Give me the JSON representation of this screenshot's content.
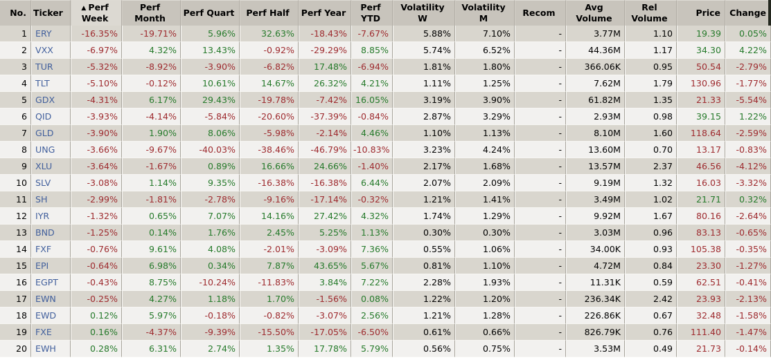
{
  "header": {
    "sort_indicator": "▲",
    "columns": [
      {
        "label": "No.",
        "field": "no",
        "align": "right",
        "head_align": "right",
        "rule": "plain",
        "sorted": false
      },
      {
        "label": "Ticker",
        "field": "ticker",
        "align": "left",
        "head_align": "left",
        "rule": "ticker",
        "sorted": false
      },
      {
        "label": "Perf Week",
        "field": "perf_week",
        "align": "right",
        "head_align": "center",
        "rule": "sign",
        "sorted": true
      },
      {
        "label": "Perf Month",
        "field": "perf_month",
        "align": "right",
        "head_align": "center",
        "rule": "sign",
        "sorted": false
      },
      {
        "label": "Perf Quart",
        "field": "perf_quart",
        "align": "right",
        "head_align": "center",
        "rule": "sign",
        "sorted": false
      },
      {
        "label": "Perf Half",
        "field": "perf_half",
        "align": "right",
        "head_align": "center",
        "rule": "sign",
        "sorted": false
      },
      {
        "label": "Perf Year",
        "field": "perf_year",
        "align": "right",
        "head_align": "center",
        "rule": "sign",
        "sorted": false
      },
      {
        "label": "Perf YTD",
        "field": "perf_ytd",
        "align": "right",
        "head_align": "center",
        "rule": "sign",
        "sorted": false
      },
      {
        "label": "Volatility W",
        "field": "vol_w",
        "align": "right",
        "head_align": "center",
        "rule": "plain",
        "sorted": false
      },
      {
        "label": "Volatility M",
        "field": "vol_m",
        "align": "right",
        "head_align": "center",
        "rule": "plain",
        "sorted": false
      },
      {
        "label": "Recom",
        "field": "recom",
        "align": "right",
        "head_align": "center",
        "rule": "plain",
        "sorted": false
      },
      {
        "label": "Avg Volume",
        "field": "avg_volume",
        "align": "right",
        "head_align": "center",
        "rule": "plain",
        "sorted": false
      },
      {
        "label": "Rel Volume",
        "field": "rel_volume",
        "align": "right",
        "head_align": "center",
        "rule": "plain",
        "sorted": false
      },
      {
        "label": "Price",
        "field": "price",
        "align": "right",
        "head_align": "right",
        "rule": "price",
        "sorted": false
      },
      {
        "label": "Change",
        "field": "change",
        "align": "right",
        "head_align": "right",
        "rule": "sign",
        "sorted": false
      }
    ]
  },
  "rows": [
    {
      "no": "1",
      "ticker": "ERY",
      "perf_week": "-16.35%",
      "perf_month": "-19.71%",
      "perf_quart": "5.96%",
      "perf_half": "32.63%",
      "perf_year": "-18.43%",
      "perf_ytd": "-7.67%",
      "vol_w": "5.88%",
      "vol_m": "7.10%",
      "recom": "-",
      "avg_volume": "3.77M",
      "rel_volume": "1.10",
      "price": "19.39",
      "change": "0.05%"
    },
    {
      "no": "2",
      "ticker": "VXX",
      "perf_week": "-6.97%",
      "perf_month": "4.32%",
      "perf_quart": "13.43%",
      "perf_half": "-0.92%",
      "perf_year": "-29.29%",
      "perf_ytd": "8.85%",
      "vol_w": "5.74%",
      "vol_m": "6.52%",
      "recom": "-",
      "avg_volume": "44.36M",
      "rel_volume": "1.17",
      "price": "34.30",
      "change": "4.22%"
    },
    {
      "no": "3",
      "ticker": "TUR",
      "perf_week": "-5.32%",
      "perf_month": "-8.92%",
      "perf_quart": "-3.90%",
      "perf_half": "-6.82%",
      "perf_year": "17.48%",
      "perf_ytd": "-6.94%",
      "vol_w": "1.81%",
      "vol_m": "1.80%",
      "recom": "-",
      "avg_volume": "366.06K",
      "rel_volume": "0.95",
      "price": "50.54",
      "change": "-2.79%"
    },
    {
      "no": "4",
      "ticker": "TLT",
      "perf_week": "-5.10%",
      "perf_month": "-0.12%",
      "perf_quart": "10.61%",
      "perf_half": "14.67%",
      "perf_year": "26.32%",
      "perf_ytd": "4.21%",
      "vol_w": "1.11%",
      "vol_m": "1.25%",
      "recom": "-",
      "avg_volume": "7.62M",
      "rel_volume": "1.79",
      "price": "130.96",
      "change": "-1.77%"
    },
    {
      "no": "5",
      "ticker": "GDX",
      "perf_week": "-4.31%",
      "perf_month": "6.17%",
      "perf_quart": "29.43%",
      "perf_half": "-19.78%",
      "perf_year": "-7.42%",
      "perf_ytd": "16.05%",
      "vol_w": "3.19%",
      "vol_m": "3.90%",
      "recom": "-",
      "avg_volume": "61.82M",
      "rel_volume": "1.35",
      "price": "21.33",
      "change": "-5.54%"
    },
    {
      "no": "6",
      "ticker": "QID",
      "perf_week": "-3.93%",
      "perf_month": "-4.14%",
      "perf_quart": "-5.84%",
      "perf_half": "-20.60%",
      "perf_year": "-37.39%",
      "perf_ytd": "-0.84%",
      "vol_w": "2.87%",
      "vol_m": "3.29%",
      "recom": "-",
      "avg_volume": "2.93M",
      "rel_volume": "0.98",
      "price": "39.15",
      "change": "1.22%"
    },
    {
      "no": "7",
      "ticker": "GLD",
      "perf_week": "-3.90%",
      "perf_month": "1.90%",
      "perf_quart": "8.06%",
      "perf_half": "-5.98%",
      "perf_year": "-2.14%",
      "perf_ytd": "4.46%",
      "vol_w": "1.10%",
      "vol_m": "1.13%",
      "recom": "-",
      "avg_volume": "8.10M",
      "rel_volume": "1.60",
      "price": "118.64",
      "change": "-2.59%"
    },
    {
      "no": "8",
      "ticker": "UNG",
      "perf_week": "-3.66%",
      "perf_month": "-9.67%",
      "perf_quart": "-40.03%",
      "perf_half": "-38.46%",
      "perf_year": "-46.79%",
      "perf_ytd": "-10.83%",
      "vol_w": "3.23%",
      "vol_m": "4.24%",
      "recom": "-",
      "avg_volume": "13.60M",
      "rel_volume": "0.70",
      "price": "13.17",
      "change": "-0.83%"
    },
    {
      "no": "9",
      "ticker": "XLU",
      "perf_week": "-3.64%",
      "perf_month": "-1.67%",
      "perf_quart": "0.89%",
      "perf_half": "16.66%",
      "perf_year": "24.66%",
      "perf_ytd": "-1.40%",
      "vol_w": "2.17%",
      "vol_m": "1.68%",
      "recom": "-",
      "avg_volume": "13.57M",
      "rel_volume": "2.37",
      "price": "46.56",
      "change": "-4.12%"
    },
    {
      "no": "10",
      "ticker": "SLV",
      "perf_week": "-3.08%",
      "perf_month": "1.14%",
      "perf_quart": "9.35%",
      "perf_half": "-16.38%",
      "perf_year": "-16.38%",
      "perf_ytd": "6.44%",
      "vol_w": "2.07%",
      "vol_m": "2.09%",
      "recom": "-",
      "avg_volume": "9.19M",
      "rel_volume": "1.32",
      "price": "16.03",
      "change": "-3.32%"
    },
    {
      "no": "11",
      "ticker": "SH",
      "perf_week": "-2.99%",
      "perf_month": "-1.81%",
      "perf_quart": "-2.78%",
      "perf_half": "-9.16%",
      "perf_year": "-17.14%",
      "perf_ytd": "-0.32%",
      "vol_w": "1.21%",
      "vol_m": "1.41%",
      "recom": "-",
      "avg_volume": "3.49M",
      "rel_volume": "1.02",
      "price": "21.71",
      "change": "0.32%"
    },
    {
      "no": "12",
      "ticker": "IYR",
      "perf_week": "-1.32%",
      "perf_month": "0.65%",
      "perf_quart": "7.07%",
      "perf_half": "14.16%",
      "perf_year": "27.42%",
      "perf_ytd": "4.32%",
      "vol_w": "1.74%",
      "vol_m": "1.29%",
      "recom": "-",
      "avg_volume": "9.92M",
      "rel_volume": "1.67",
      "price": "80.16",
      "change": "-2.64%"
    },
    {
      "no": "13",
      "ticker": "BND",
      "perf_week": "-1.25%",
      "perf_month": "0.14%",
      "perf_quart": "1.76%",
      "perf_half": "2.45%",
      "perf_year": "5.25%",
      "perf_ytd": "1.13%",
      "vol_w": "0.30%",
      "vol_m": "0.30%",
      "recom": "-",
      "avg_volume": "3.03M",
      "rel_volume": "0.96",
      "price": "83.13",
      "change": "-0.65%"
    },
    {
      "no": "14",
      "ticker": "FXF",
      "perf_week": "-0.76%",
      "perf_month": "9.61%",
      "perf_quart": "4.08%",
      "perf_half": "-2.01%",
      "perf_year": "-3.09%",
      "perf_ytd": "7.36%",
      "vol_w": "0.55%",
      "vol_m": "1.06%",
      "recom": "-",
      "avg_volume": "34.00K",
      "rel_volume": "0.93",
      "price": "105.38",
      "change": "-0.35%"
    },
    {
      "no": "15",
      "ticker": "EPI",
      "perf_week": "-0.64%",
      "perf_month": "6.98%",
      "perf_quart": "0.34%",
      "perf_half": "7.87%",
      "perf_year": "43.65%",
      "perf_ytd": "5.67%",
      "vol_w": "0.81%",
      "vol_m": "1.10%",
      "recom": "-",
      "avg_volume": "4.72M",
      "rel_volume": "0.84",
      "price": "23.30",
      "change": "-1.27%"
    },
    {
      "no": "16",
      "ticker": "EGPT",
      "perf_week": "-0.43%",
      "perf_month": "8.75%",
      "perf_quart": "-10.24%",
      "perf_half": "-11.83%",
      "perf_year": "3.84%",
      "perf_ytd": "7.22%",
      "vol_w": "2.28%",
      "vol_m": "1.93%",
      "recom": "-",
      "avg_volume": "11.31K",
      "rel_volume": "0.59",
      "price": "62.51",
      "change": "-0.41%"
    },
    {
      "no": "17",
      "ticker": "EWN",
      "perf_week": "-0.25%",
      "perf_month": "4.27%",
      "perf_quart": "1.18%",
      "perf_half": "1.70%",
      "perf_year": "-1.56%",
      "perf_ytd": "0.08%",
      "vol_w": "1.22%",
      "vol_m": "1.20%",
      "recom": "-",
      "avg_volume": "236.34K",
      "rel_volume": "2.42",
      "price": "23.93",
      "change": "-2.13%"
    },
    {
      "no": "18",
      "ticker": "EWD",
      "perf_week": "0.12%",
      "perf_month": "5.97%",
      "perf_quart": "-0.18%",
      "perf_half": "-0.82%",
      "perf_year": "-3.07%",
      "perf_ytd": "2.56%",
      "vol_w": "1.21%",
      "vol_m": "1.28%",
      "recom": "-",
      "avg_volume": "226.86K",
      "rel_volume": "0.67",
      "price": "32.48",
      "change": "-1.58%"
    },
    {
      "no": "19",
      "ticker": "FXE",
      "perf_week": "0.16%",
      "perf_month": "-4.37%",
      "perf_quart": "-9.39%",
      "perf_half": "-15.50%",
      "perf_year": "-17.05%",
      "perf_ytd": "-6.50%",
      "vol_w": "0.61%",
      "vol_m": "0.66%",
      "recom": "-",
      "avg_volume": "826.79K",
      "rel_volume": "0.76",
      "price": "111.40",
      "change": "-1.47%"
    },
    {
      "no": "20",
      "ticker": "EWH",
      "perf_week": "0.28%",
      "perf_month": "6.31%",
      "perf_quart": "2.74%",
      "perf_half": "1.35%",
      "perf_year": "17.78%",
      "perf_ytd": "5.79%",
      "vol_w": "0.56%",
      "vol_m": "0.75%",
      "recom": "-",
      "avg_volume": "3.53M",
      "rel_volume": "0.49",
      "price": "21.73",
      "change": "-0.14%"
    }
  ],
  "colors": {
    "positive": "#267a2b",
    "negative": "#9e2b2f",
    "ticker": "#415f9c",
    "text": "#000000",
    "header_bg": "#c8c4bc",
    "sorted_header_bg": "#dcd9d2",
    "row_odd_bg": "#d9d6ce",
    "row_even_bg": "#f2f1ef"
  }
}
